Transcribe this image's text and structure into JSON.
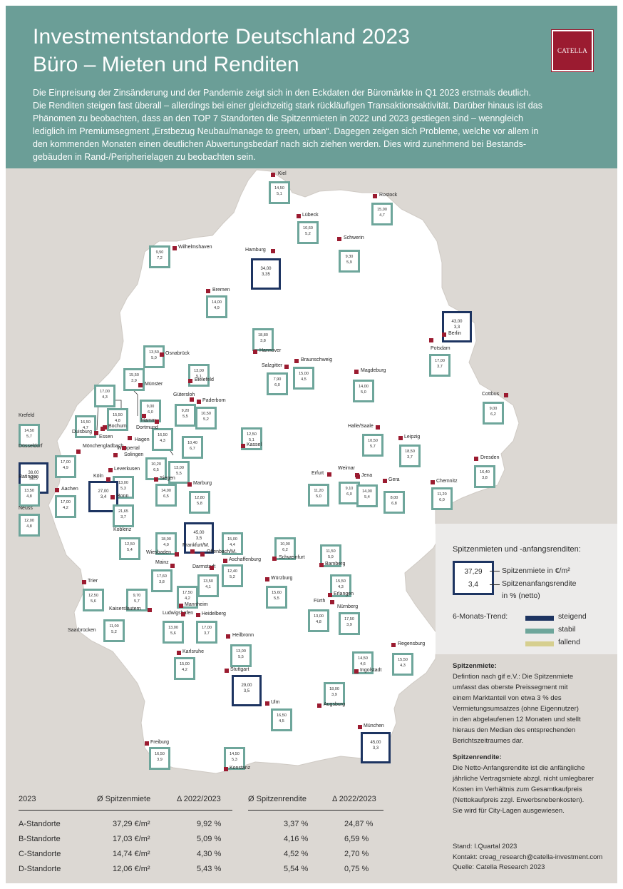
{
  "header": {
    "title_line1": "Investmentstandorte Deutschland 2023",
    "title_line2": "Büro – Mieten und Renditen",
    "logo_text": "CATELLA",
    "intro_lines": [
      "Die Einpreisung der Zinsänderung und der Pandemie zeigt sich in den Eckdaten der Büromärkte in Q1 2023 erstmals deutlich.",
      "Die Renditen steigen fast überall – allerdings bei einer gleichzeitig stark rückläufigen Transaktionsaktivität. Darüber hinaus ist das",
      "Phänomen zu beobachten, dass an den TOP 7 Standorten die Spitzenmieten in 2022 und 2023 gestiegen sind – wenngleich",
      "lediglich im Premiumsegment „Erstbezug Neubau/manage to green, urban“. Dagegen zeigen sich Probleme, welche vor allem in",
      "den kommenden Monaten einen deutlichen Abwertungsbedarf nach sich ziehen werden. Dies wird zunehmend bei Bestands-",
      "gebäuden in Rand-/Peripherielagen zu beobachten sein."
    ]
  },
  "colors": {
    "header_bg": "#6b9e97",
    "brand": "#9b1b30",
    "steigend": "#1d3461",
    "stabil": "#6ea69b",
    "fallend": "#d6cf8f",
    "land": "#ffffff",
    "background": "#dcd8d3"
  },
  "cities": [
    {
      "name": "Kiel",
      "rent": "14,50",
      "yield": "5,1",
      "trend": "stabil"
    },
    {
      "name": "Rostock",
      "rent": "15,00",
      "yield": "4,7",
      "trend": "stabil"
    },
    {
      "name": "Lübeck",
      "rent": "10,60",
      "yield": "5,2",
      "trend": "stabil"
    },
    {
      "name": "Schwerin",
      "rent": "9,30",
      "yield": "5,9",
      "trend": "stabil"
    },
    {
      "name": "Wilhelmshaven",
      "rent": "9,50",
      "yield": "7,2",
      "trend": "stabil"
    },
    {
      "name": "Hamburg",
      "rent": "34,00",
      "yield": "3,35",
      "trend": "steigend"
    },
    {
      "name": "Bremen",
      "rent": "14,00",
      "yield": "4,9",
      "trend": "stabil"
    },
    {
      "name": "Berlin",
      "rent": "43,00",
      "yield": "3,3",
      "trend": "steigend"
    },
    {
      "name": "Hannover",
      "rent": "18,80",
      "yield": "3,8",
      "trend": "stabil"
    },
    {
      "name": "Potsdam",
      "rent": "17,00",
      "yield": "3,7",
      "trend": "stabil"
    },
    {
      "name": "Osnabrück",
      "rent": "13,50",
      "yield": "5,0",
      "trend": "stabil"
    },
    {
      "name": "Braunschweig",
      "rent": "15,00",
      "yield": "4,5",
      "trend": "stabil"
    },
    {
      "name": "Bielefeld",
      "rent": "13,00",
      "yield": "5,1",
      "trend": "stabil"
    },
    {
      "name": "Salzgitter",
      "rent": "7,90",
      "yield": "6,0",
      "trend": "stabil"
    },
    {
      "name": "Magdeburg",
      "rent": "14,00",
      "yield": "5,0",
      "trend": "stabil"
    },
    {
      "name": "Münster",
      "rent": "15,50",
      "yield": "3,9",
      "trend": "stabil"
    },
    {
      "name": "Gütersloh",
      "rent": "9,20",
      "yield": "5,5",
      "trend": "stabil"
    },
    {
      "name": "Paderborn",
      "rent": "10,50",
      "yield": "5,2",
      "trend": "stabil"
    },
    {
      "name": "Cottbus",
      "rent": "9,00",
      "yield": "6,2",
      "trend": "stabil"
    },
    {
      "name": "Hamm",
      "rent": "9,00",
      "yield": "6,0",
      "trend": "stabil"
    },
    {
      "name": "Essen",
      "rent": "17,00",
      "yield": "4,3",
      "trend": "stabil"
    },
    {
      "name": "Duisburg",
      "rent": "16,50",
      "yield": "4,7",
      "trend": "stabil"
    },
    {
      "name": "Bochum",
      "rent": "15,50",
      "yield": "4,8",
      "trend": "stabil"
    },
    {
      "name": "Dortmund",
      "rent": "16,50",
      "yield": "4,3",
      "trend": "stabil"
    },
    {
      "name": "Halle/Saale",
      "rent": "10,50",
      "yield": "5,7",
      "trend": "stabil"
    },
    {
      "name": "Kassel",
      "rent": "12,50",
      "yield": "5,1",
      "trend": "stabil"
    },
    {
      "name": "Leipzig",
      "rent": "18,50",
      "yield": "3,7",
      "trend": "stabil"
    },
    {
      "name": "Krefeld",
      "rent": "14,50",
      "yield": "5,7",
      "trend": "stabil"
    },
    {
      "name": "Düsseldorf",
      "rent": "38,00",
      "yield": "3,25",
      "trend": "steigend"
    },
    {
      "name": "Mönchengladbach",
      "rent": "17,00",
      "yield": "4,9",
      "trend": "stabil"
    },
    {
      "name": "Ratingen",
      "rent": "13,50",
      "yield": "4,8",
      "trend": "stabil"
    },
    {
      "name": "Neuss",
      "rent": "12,00",
      "yield": "4,8",
      "trend": "stabil"
    },
    {
      "name": "Wuppertal",
      "rent": "10,20",
      "yield": "6,5",
      "trend": "stabil"
    },
    {
      "name": "Hagen",
      "rent": "10,40",
      "yield": "6,7",
      "trend": "stabil"
    },
    {
      "name": "Solingen",
      "rent": "13,00",
      "yield": "5,5",
      "trend": "stabil"
    },
    {
      "name": "Leverkusen",
      "rent": "13,00",
      "yield": "5,3",
      "trend": "stabil"
    },
    {
      "name": "Köln",
      "rent": "27,00",
      "yield": "3,4",
      "trend": "steigend"
    },
    {
      "name": "Siegen",
      "rent": "14,00",
      "yield": "6,5",
      "trend": "stabil"
    },
    {
      "name": "Bonn",
      "rent": "21,65",
      "yield": "3,7",
      "trend": "stabil"
    },
    {
      "name": "Aachen",
      "rent": "17,00",
      "yield": "4,2",
      "trend": "stabil"
    },
    {
      "name": "Dresden",
      "rent": "16,40",
      "yield": "3,8",
      "trend": "stabil"
    },
    {
      "name": "Erfurt",
      "rent": "11,20",
      "yield": "5,0",
      "trend": "stabil"
    },
    {
      "name": "Weimar",
      "rent": "9,10",
      "yield": "6,0",
      "trend": "stabil"
    },
    {
      "name": "Jena",
      "rent": "14,00",
      "yield": "5,4",
      "trend": "stabil"
    },
    {
      "name": "Gera",
      "rent": "8,00",
      "yield": "6,8",
      "trend": "stabil"
    },
    {
      "name": "Chemnitz",
      "rent": "11,20",
      "yield": "6,0",
      "trend": "stabil"
    },
    {
      "name": "Marburg",
      "rent": "12,80",
      "yield": "5,8",
      "trend": "stabil"
    },
    {
      "name": "Frankfurt/M.",
      "rent": "45,00",
      "yield": "3,5",
      "trend": "steigend"
    },
    {
      "name": "Koblenz",
      "rent": "12,50",
      "yield": "5,4",
      "trend": "stabil"
    },
    {
      "name": "Wiesbaden",
      "rent": "18,00",
      "yield": "4,0",
      "trend": "stabil"
    },
    {
      "name": "Offenbach/M.",
      "rent": "15,00",
      "yield": "4,4",
      "trend": "stabil"
    },
    {
      "name": "Schweinfurt",
      "rent": "10,00",
      "yield": "6,2",
      "trend": "stabil"
    },
    {
      "name": "Bamberg",
      "rent": "11,50",
      "yield": "5,9",
      "trend": "stabil"
    },
    {
      "name": "Aschaffenburg",
      "rent": "12,40",
      "yield": "5,2",
      "trend": "stabil"
    },
    {
      "name": "Mainz",
      "rent": "17,60",
      "yield": "3,8",
      "trend": "stabil"
    },
    {
      "name": "Darmstadt",
      "rent": "13,50",
      "yield": "4,1",
      "trend": "stabil"
    },
    {
      "name": "Würzburg",
      "rent": "15,60",
      "yield": "5,5",
      "trend": "stabil"
    },
    {
      "name": "Erlangen",
      "rent": "15,50",
      "yield": "4,3",
      "trend": "stabil"
    },
    {
      "name": "Trier",
      "rent": "12,50",
      "yield": "5,6",
      "trend": "stabil"
    },
    {
      "name": "Kaiserslautern",
      "rent": "9,70",
      "yield": "5,7",
      "trend": "stabil"
    },
    {
      "name": "Mannheim",
      "rent": "17,50",
      "yield": "4,2",
      "trend": "stabil"
    },
    {
      "name": "Fürth",
      "rent": "13,00",
      "yield": "4,8",
      "trend": "stabil"
    },
    {
      "name": "Nürnberg",
      "rent": "17,50",
      "yield": "3,9",
      "trend": "stabil"
    },
    {
      "name": "Ludwigshafen",
      "rent": "13,00",
      "yield": "5,6",
      "trend": "stabil"
    },
    {
      "name": "Heidelberg",
      "rent": "17,00",
      "yield": "3,7",
      "trend": "stabil"
    },
    {
      "name": "Saarbrücken",
      "rent": "11,00",
      "yield": "5,2",
      "trend": "stabil"
    },
    {
      "name": "Heilbronn",
      "rent": "13,00",
      "yield": "5,5",
      "trend": "stabil"
    },
    {
      "name": "Regensburg",
      "rent": "15,50",
      "yield": "4,3",
      "trend": "stabil"
    },
    {
      "name": "Ingolstadt",
      "rent": "14,50",
      "yield": "4,6",
      "trend": "stabil"
    },
    {
      "name": "Karlsruhe",
      "rent": "15,00",
      "yield": "4,2",
      "trend": "stabil"
    },
    {
      "name": "Stuttgart",
      "rent": "29,00",
      "yield": "3,5",
      "trend": "steigend"
    },
    {
      "name": "Augsburg",
      "rent": "18,00",
      "yield": "3,9",
      "trend": "stabil"
    },
    {
      "name": "Ulm",
      "rent": "16,50",
      "yield": "4,5",
      "trend": "stabil"
    },
    {
      "name": "München",
      "rent": "45,00",
      "yield": "3,3",
      "trend": "steigend"
    },
    {
      "name": "Freiburg",
      "rent": "16,50",
      "yield": "3,9",
      "trend": "stabil"
    },
    {
      "name": "Konstanz",
      "rent": "14,50",
      "yield": "5,3",
      "trend": "stabil"
    }
  ],
  "legend": {
    "title": "Spitzenmieten und -anfangsrenditen:",
    "example_rent": "37,29",
    "example_yield": "3,4",
    "rent_label": "Spitzenmiete in €/m²",
    "yield_label_1": "Spitzenanfangsrendite",
    "yield_label_2": "in % (netto)",
    "trend_title": "6-Monats-Trend:",
    "trend_steigend": "steigend",
    "trend_stabil": "stabil",
    "trend_fallend": "fallend"
  },
  "definitions": {
    "miete_heading": "Spitzenmiete:",
    "miete_lines": [
      "Defintion nach gif e.V.: Die Spitzenmiete",
      "umfasst das oberste Preissegment mit",
      "einem Marktanteil von etwa 3 % des",
      "Vermietungsumsatzes (ohne Eigennutzer)",
      "in den abgelaufenen 12 Monaten und stellt",
      "hieraus den Median des entsprechenden",
      "Berichtszeitraumes dar."
    ],
    "rendite_heading": "Spitzenrendite:",
    "rendite_lines": [
      "Die Netto-Anfangsrendite ist die anfängliche",
      "jährliche Vertragsmiete abzgl. nicht umlegbarer",
      "Kosten im Verhältnis zum Gesamtkaufpreis",
      "(Nettokaufpreis zzgl. Erwerbsnebenkosten).",
      "Sie wird für City-Lagen ausgewiesen."
    ]
  },
  "footer": {
    "stand": "Stand: I.Quartal 2023",
    "kontakt": "Kontakt: creag_research@catella-investment.com",
    "quelle": "Quelle: Catella Research 2023"
  },
  "table": {
    "headers": [
      "2023",
      "Ø Spitzenmiete",
      "Δ 2022/2023",
      "Ø Spitzenrendite",
      "Δ 2022/2023"
    ],
    "rows": [
      [
        "A-Standorte",
        "37,29 €/m²",
        "9,92 %",
        "3,37 %",
        "24,87 %"
      ],
      [
        "B-Standorte",
        "17,03 €/m²",
        "5,09 %",
        "4,16 %",
        "6,59 %"
      ],
      [
        "C-Standorte",
        "14,74 €/m²",
        "4,30 %",
        "4,52 %",
        "2,70 %"
      ],
      [
        "D-Standorte",
        "12,06 €/m²",
        "5,43 %",
        "5,54 %",
        "0,75 %"
      ]
    ]
  }
}
